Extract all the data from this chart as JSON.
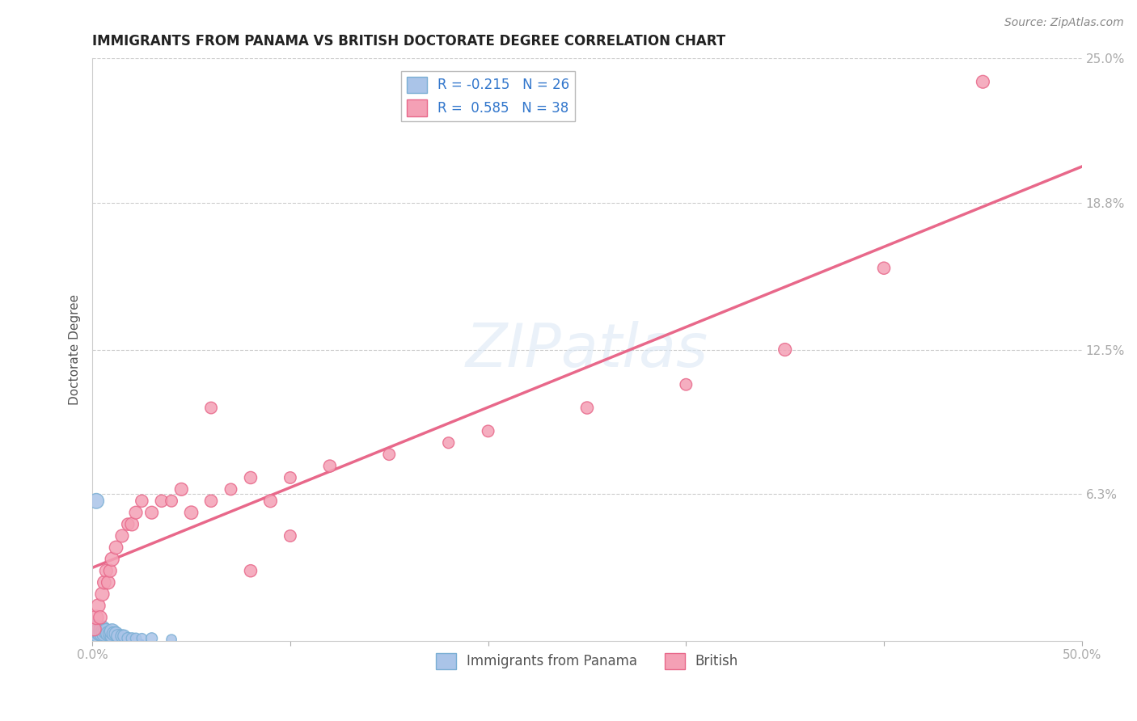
{
  "title": "IMMIGRANTS FROM PANAMA VS BRITISH DOCTORATE DEGREE CORRELATION CHART",
  "source": "Source: ZipAtlas.com",
  "ylabel": "Doctorate Degree",
  "xlim": [
    0.0,
    0.5
  ],
  "ylim": [
    0.0,
    0.25
  ],
  "ytick_labels": [
    "6.3%",
    "12.5%",
    "18.8%",
    "25.0%"
  ],
  "ytick_vals": [
    0.063,
    0.125,
    0.188,
    0.25
  ],
  "grid_color": "#cccccc",
  "background": "#ffffff",
  "panama_color": "#aac4e8",
  "panama_edge": "#7bafd4",
  "british_color": "#f4a0b5",
  "british_edge": "#e8688a",
  "panama_R": -0.215,
  "panama_N": 26,
  "british_R": 0.585,
  "british_N": 38,
  "legend_text_blue": "R = -0.215   N = 26",
  "legend_text_pink": "R =  0.585   N = 38",
  "panama_x": [
    0.001,
    0.002,
    0.002,
    0.003,
    0.003,
    0.004,
    0.005,
    0.005,
    0.006,
    0.006,
    0.007,
    0.008,
    0.009,
    0.01,
    0.01,
    0.011,
    0.012,
    0.013,
    0.015,
    0.016,
    0.018,
    0.02,
    0.022,
    0.025,
    0.03,
    0.04
  ],
  "panama_y": [
    0.004,
    0.003,
    0.06,
    0.005,
    0.004,
    0.003,
    0.005,
    0.003,
    0.004,
    0.003,
    0.004,
    0.003,
    0.003,
    0.002,
    0.004,
    0.003,
    0.003,
    0.002,
    0.002,
    0.002,
    0.001,
    0.001,
    0.001,
    0.001,
    0.001,
    0.0005
  ],
  "panama_sizes": [
    220,
    200,
    180,
    240,
    200,
    180,
    210,
    190,
    200,
    180,
    190,
    170,
    160,
    150,
    180,
    160,
    150,
    140,
    130,
    120,
    110,
    100,
    90,
    80,
    100,
    80
  ],
  "british_x": [
    0.001,
    0.002,
    0.003,
    0.004,
    0.005,
    0.006,
    0.007,
    0.008,
    0.009,
    0.01,
    0.012,
    0.015,
    0.018,
    0.02,
    0.022,
    0.025,
    0.03,
    0.035,
    0.04,
    0.045,
    0.05,
    0.06,
    0.07,
    0.08,
    0.09,
    0.1,
    0.12,
    0.15,
    0.18,
    0.2,
    0.25,
    0.3,
    0.35,
    0.4,
    0.45,
    0.06,
    0.08,
    0.1
  ],
  "british_y": [
    0.005,
    0.01,
    0.015,
    0.01,
    0.02,
    0.025,
    0.03,
    0.025,
    0.03,
    0.035,
    0.04,
    0.045,
    0.05,
    0.05,
    0.055,
    0.06,
    0.055,
    0.06,
    0.06,
    0.065,
    0.055,
    0.06,
    0.065,
    0.07,
    0.06,
    0.07,
    0.075,
    0.08,
    0.085,
    0.09,
    0.1,
    0.11,
    0.125,
    0.16,
    0.24,
    0.1,
    0.03,
    0.045
  ],
  "british_sizes": [
    150,
    160,
    150,
    140,
    150,
    140,
    130,
    140,
    130,
    150,
    140,
    130,
    120,
    140,
    130,
    120,
    130,
    120,
    110,
    130,
    140,
    120,
    110,
    120,
    130,
    110,
    120,
    110,
    100,
    110,
    120,
    110,
    130,
    120,
    130,
    110,
    120,
    110
  ]
}
